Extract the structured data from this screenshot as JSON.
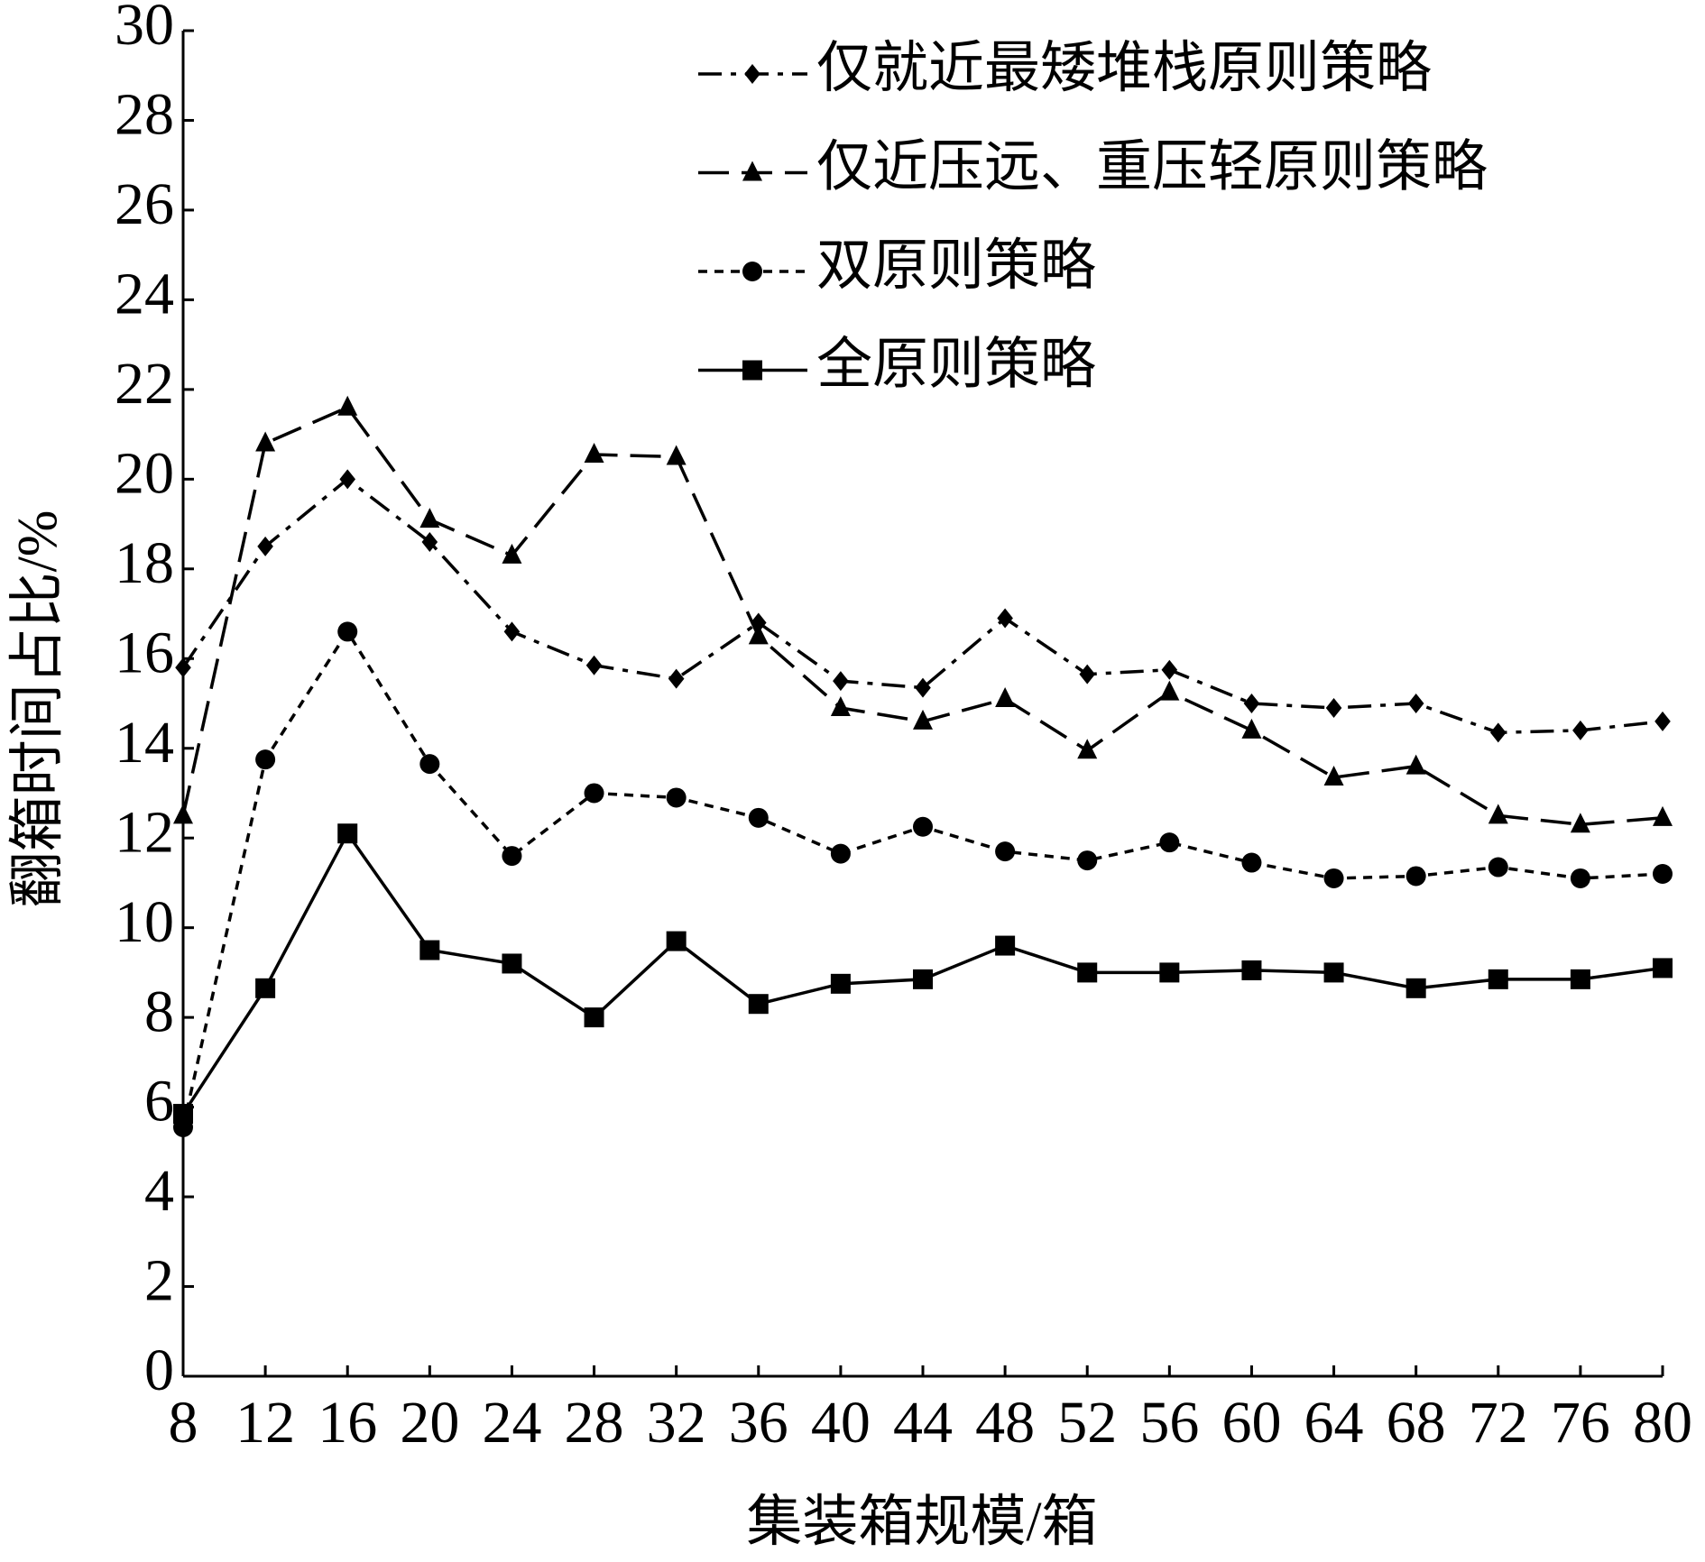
{
  "chart_data": {
    "type": "line",
    "x_label": "集装箱规模/箱",
    "y_label": "翻箱时间占比/%",
    "x": [
      8,
      12,
      16,
      20,
      24,
      28,
      32,
      36,
      40,
      44,
      48,
      52,
      56,
      60,
      64,
      68,
      72,
      76,
      80
    ],
    "xlim": [
      8,
      80
    ],
    "xticks": [
      8,
      12,
      16,
      20,
      24,
      28,
      32,
      36,
      40,
      44,
      48,
      52,
      56,
      60,
      64,
      68,
      72,
      76,
      80
    ],
    "ylim": [
      0,
      30
    ],
    "yticks": [
      0,
      2,
      4,
      6,
      8,
      10,
      12,
      14,
      16,
      18,
      20,
      22,
      24,
      26,
      28,
      30
    ],
    "grid": false,
    "legend": "upper right",
    "series": [
      {
        "name": "仅就近最矮堆栈原则策略",
        "color": "#000000",
        "marker": "diamond",
        "line_style": "dashdot",
        "values": [
          15.8,
          18.5,
          20.0,
          18.6,
          16.6,
          15.85,
          15.55,
          16.8,
          15.5,
          15.35,
          16.9,
          15.65,
          15.75,
          15.0,
          14.9,
          15.0,
          14.35,
          14.4,
          14.6
        ]
      },
      {
        "name": "仅近压远、重压轻原则策略",
        "color": "#000000",
        "marker": "triangle",
        "line_style": "dashed",
        "values": [
          12.5,
          20.8,
          21.6,
          19.1,
          18.3,
          20.55,
          20.5,
          16.5,
          14.9,
          14.6,
          15.1,
          13.95,
          15.25,
          14.4,
          13.35,
          13.6,
          12.5,
          12.3,
          12.45
        ]
      },
      {
        "name": "双原则策略",
        "color": "#000000",
        "marker": "circle",
        "line_style": "dotted",
        "values": [
          5.55,
          13.75,
          16.6,
          13.65,
          11.6,
          13.0,
          12.9,
          12.45,
          11.65,
          12.25,
          11.7,
          11.5,
          11.9,
          11.45,
          11.1,
          11.15,
          11.35,
          11.1,
          11.2
        ]
      },
      {
        "name": "全原则策略",
        "color": "#000000",
        "marker": "square",
        "line_style": "solid",
        "values": [
          5.85,
          8.65,
          12.1,
          9.5,
          9.2,
          8.0,
          9.7,
          8.3,
          8.75,
          8.85,
          9.6,
          9.0,
          9.0,
          9.05,
          9.0,
          8.65,
          8.85,
          8.85,
          9.1
        ]
      }
    ]
  }
}
